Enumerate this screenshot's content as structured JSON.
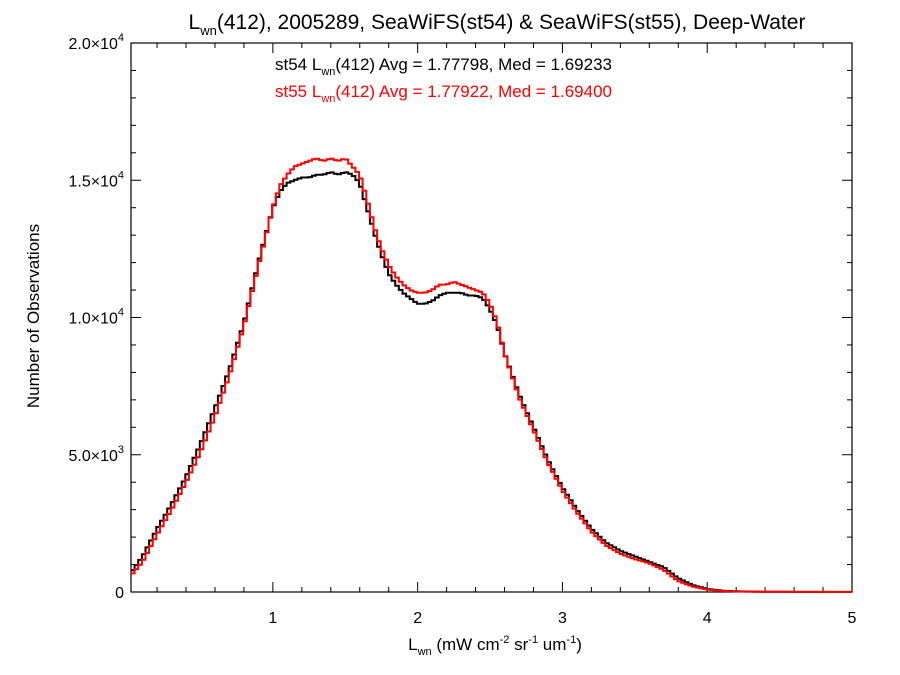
{
  "chart_data": {
    "type": "line",
    "style": "step",
    "title": {
      "base": "L",
      "sub": "wn",
      "rest": "(412), 2005289, SeaWiFS(st54) & SeaWiFS(st55), Deep-Water"
    },
    "xlabel": {
      "base": "L",
      "sub": "wn",
      "pre": " (mW cm",
      "sup1": "-2",
      "mid": " sr",
      "sup2": "-1",
      "post": " um",
      "sup3": "-1",
      "close": ")"
    },
    "ylabel": "Number of Observations",
    "xlim": [
      0.02,
      5.0
    ],
    "ylim": [
      0,
      20000
    ],
    "x_ticks": [
      {
        "value": 1,
        "label": "1"
      },
      {
        "value": 2,
        "label": "2"
      },
      {
        "value": 3,
        "label": "3"
      },
      {
        "value": 4,
        "label": "4"
      },
      {
        "value": 5,
        "label": "5"
      }
    ],
    "y_ticks": [
      {
        "value": 0,
        "base": "0",
        "exp": ""
      },
      {
        "value": 5000,
        "base": "5.0×10",
        "exp": "3"
      },
      {
        "value": 10000,
        "base": "1.0×10",
        "exp": "4"
      },
      {
        "value": 15000,
        "base": "1.5×10",
        "exp": "4"
      },
      {
        "value": 20000,
        "base": "2.0×10",
        "exp": "4"
      }
    ],
    "grid": false,
    "legend_position": "top-center",
    "series": [
      {
        "name": "st54",
        "color": "#000000",
        "label": {
          "pre": "st54 L",
          "sub": "wn",
          "post": "(412) Avg = 1.77798, Med = 1.69233"
        },
        "x": [
          0.02,
          0.1,
          0.2,
          0.3,
          0.4,
          0.5,
          0.6,
          0.7,
          0.8,
          0.9,
          1.0,
          1.05,
          1.1,
          1.15,
          1.2,
          1.25,
          1.3,
          1.35,
          1.4,
          1.45,
          1.5,
          1.55,
          1.6,
          1.65,
          1.7,
          1.75,
          1.8,
          1.85,
          1.9,
          1.95,
          2.0,
          2.05,
          2.1,
          2.15,
          2.2,
          2.25,
          2.3,
          2.35,
          2.4,
          2.45,
          2.5,
          2.55,
          2.6,
          2.7,
          2.8,
          2.9,
          3.0,
          3.1,
          3.2,
          3.3,
          3.4,
          3.5,
          3.6,
          3.7,
          3.8,
          3.9,
          4.0,
          4.1,
          4.2,
          4.4,
          4.6,
          4.8,
          5.0
        ],
        "y": [
          700,
          1300,
          2300,
          3200,
          4200,
          5400,
          6700,
          8100,
          9800,
          12000,
          14000,
          14600,
          14900,
          15000,
          15100,
          15100,
          15200,
          15200,
          15300,
          15200,
          15300,
          15200,
          14900,
          14000,
          13100,
          12300,
          11600,
          11200,
          10900,
          10700,
          10500,
          10500,
          10600,
          10800,
          10900,
          10900,
          10900,
          10800,
          10800,
          10700,
          10300,
          9700,
          8700,
          7200,
          6000,
          4800,
          3800,
          3000,
          2300,
          1800,
          1500,
          1300,
          1100,
          900,
          500,
          250,
          110,
          50,
          25,
          10,
          5,
          3,
          2
        ]
      },
      {
        "name": "st55",
        "color": "#ff0000",
        "label": {
          "pre": "st55 L",
          "sub": "wn",
          "post": "(412) Avg = 1.77922, Med = 1.69400"
        },
        "x": [
          0.02,
          0.1,
          0.2,
          0.3,
          0.4,
          0.5,
          0.6,
          0.7,
          0.8,
          0.9,
          1.0,
          1.05,
          1.1,
          1.15,
          1.2,
          1.25,
          1.3,
          1.35,
          1.4,
          1.45,
          1.5,
          1.55,
          1.6,
          1.65,
          1.7,
          1.75,
          1.8,
          1.85,
          1.9,
          1.95,
          2.0,
          2.05,
          2.1,
          2.15,
          2.2,
          2.25,
          2.3,
          2.35,
          2.4,
          2.45,
          2.5,
          2.55,
          2.6,
          2.7,
          2.8,
          2.9,
          3.0,
          3.1,
          3.2,
          3.3,
          3.4,
          3.5,
          3.6,
          3.7,
          3.8,
          3.9,
          4.0,
          4.1,
          4.2,
          4.4,
          4.6,
          4.8,
          5.0
        ],
        "y": [
          600,
          1100,
          2100,
          3000,
          4000,
          5100,
          6400,
          7900,
          9700,
          11900,
          14000,
          14800,
          15200,
          15500,
          15600,
          15700,
          15800,
          15700,
          15800,
          15700,
          15800,
          15500,
          15200,
          14300,
          13300,
          12500,
          11900,
          11500,
          11200,
          11000,
          10900,
          10900,
          11000,
          11200,
          11200,
          11300,
          11200,
          11100,
          11000,
          10900,
          10500,
          9800,
          8700,
          7100,
          5900,
          4700,
          3700,
          2900,
          2200,
          1700,
          1400,
          1200,
          1050,
          800,
          400,
          200,
          90,
          40,
          20,
          8,
          4,
          2,
          1
        ]
      }
    ]
  }
}
